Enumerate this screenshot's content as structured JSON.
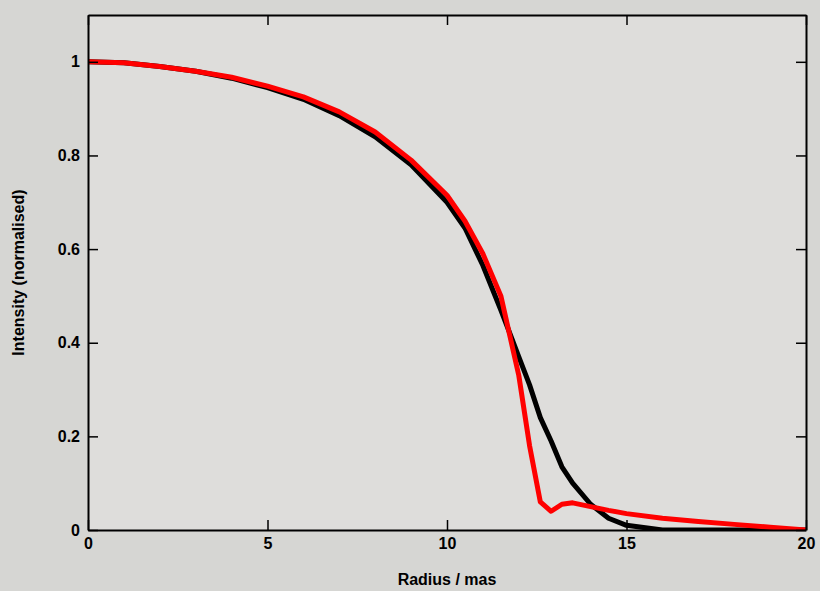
{
  "chart_data": {
    "type": "line",
    "x_label": "Radius / mas",
    "y_label": "Intensity (normalised)",
    "x": [
      0,
      1,
      2,
      3,
      4,
      5,
      6,
      7,
      8,
      9,
      10,
      10.5,
      11,
      11.5,
      12,
      12.3,
      12.6,
      12.9,
      13.2,
      13.5,
      14,
      14.5,
      15,
      16,
      17,
      18,
      19,
      20
    ],
    "series": [
      {
        "color": "#000000",
        "line_style": "solid",
        "values": [
          1,
          0.998,
          0.99,
          0.98,
          0.965,
          0.945,
          0.92,
          0.885,
          0.84,
          0.78,
          0.7,
          0.645,
          0.565,
          0.47,
          0.37,
          0.31,
          0.24,
          0.19,
          0.135,
          0.1,
          0.055,
          0.025,
          0.01,
          0,
          0,
          0,
          0,
          0
        ]
      },
      {
        "color": "#ff0000",
        "line_style": "solid",
        "values": [
          1,
          0.998,
          0.99,
          0.98,
          0.967,
          0.948,
          0.925,
          0.893,
          0.85,
          0.79,
          0.715,
          0.66,
          0.59,
          0.5,
          0.33,
          0.18,
          0.06,
          0.04,
          0.055,
          0.058,
          0.05,
          0.042,
          0.035,
          0.025,
          0.018,
          0.012,
          0.006,
          0
        ]
      }
    ],
    "xlim": [
      0,
      20
    ],
    "xticks": [
      0,
      5,
      10,
      15,
      20
    ],
    "ylim": [
      0,
      1.1
    ],
    "yticks": [
      0,
      0.2,
      0.4,
      0.6,
      0.8,
      1
    ],
    "grid": false
  }
}
